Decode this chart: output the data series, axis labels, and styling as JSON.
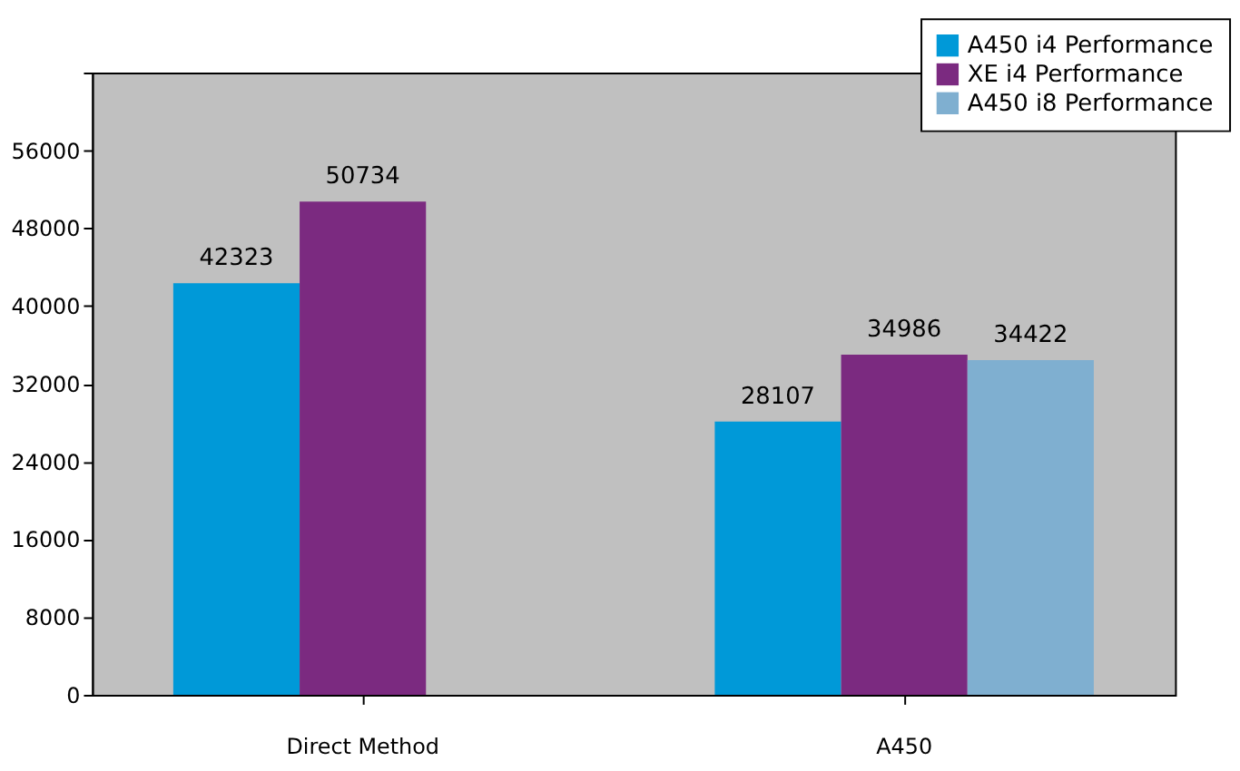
{
  "chart_data": {
    "type": "bar",
    "categories": [
      "Direct Method",
      "A450"
    ],
    "series": [
      {
        "name": "A450 i4 Performance",
        "color": "#0099d8",
        "values": [
          42323,
          28107
        ]
      },
      {
        "name": "XE i4 Performance",
        "color": "#7b2a80",
        "values": [
          50734,
          34986
        ]
      },
      {
        "name": "A450 i8 Performance",
        "color": "#7fafd0",
        "values": [
          null,
          34422
        ]
      }
    ],
    "ylim": [
      0,
      64000
    ],
    "yticks": [
      0,
      8000,
      16000,
      24000,
      32000,
      40000,
      48000,
      56000,
      {
        "value": 64000,
        "label": null
      }
    ],
    "data_labels": true,
    "legend": "top right",
    "grid": false
  }
}
